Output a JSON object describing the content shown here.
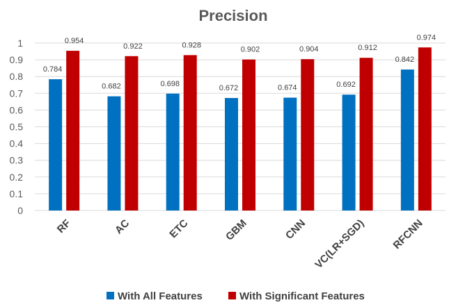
{
  "chart_data": {
    "type": "bar",
    "title": "Precision",
    "xlabel": "",
    "ylabel": "",
    "ylim": [
      0,
      1
    ],
    "yticks": [
      "0",
      "0.1",
      "0.2",
      "0.3",
      "0.4",
      "0.5",
      "0.6",
      "0.7",
      "0.8",
      "0.9",
      "1"
    ],
    "categories": [
      "RF",
      "AC",
      "ETC",
      "GBM",
      "CNN",
      "VC(LR+SGD)",
      "RFCNN"
    ],
    "series": [
      {
        "name": "With All Features",
        "color": "#0070C0",
        "values": [
          0.784,
          0.682,
          0.698,
          0.672,
          0.674,
          0.692,
          0.842
        ],
        "labels": [
          "0.784",
          "0.682",
          "0.698",
          "0.672",
          "0.674",
          "0.692",
          "0.842"
        ]
      },
      {
        "name": "With Significant Features",
        "color": "#C00000",
        "values": [
          0.954,
          0.922,
          0.928,
          0.902,
          0.904,
          0.912,
          0.974
        ],
        "labels": [
          "0.954",
          "0.922",
          "0.928",
          "0.902",
          "0.904",
          "0.912",
          "0.974"
        ]
      }
    ],
    "grid": true,
    "legend_position": "bottom",
    "category_label_rotation": -45
  }
}
